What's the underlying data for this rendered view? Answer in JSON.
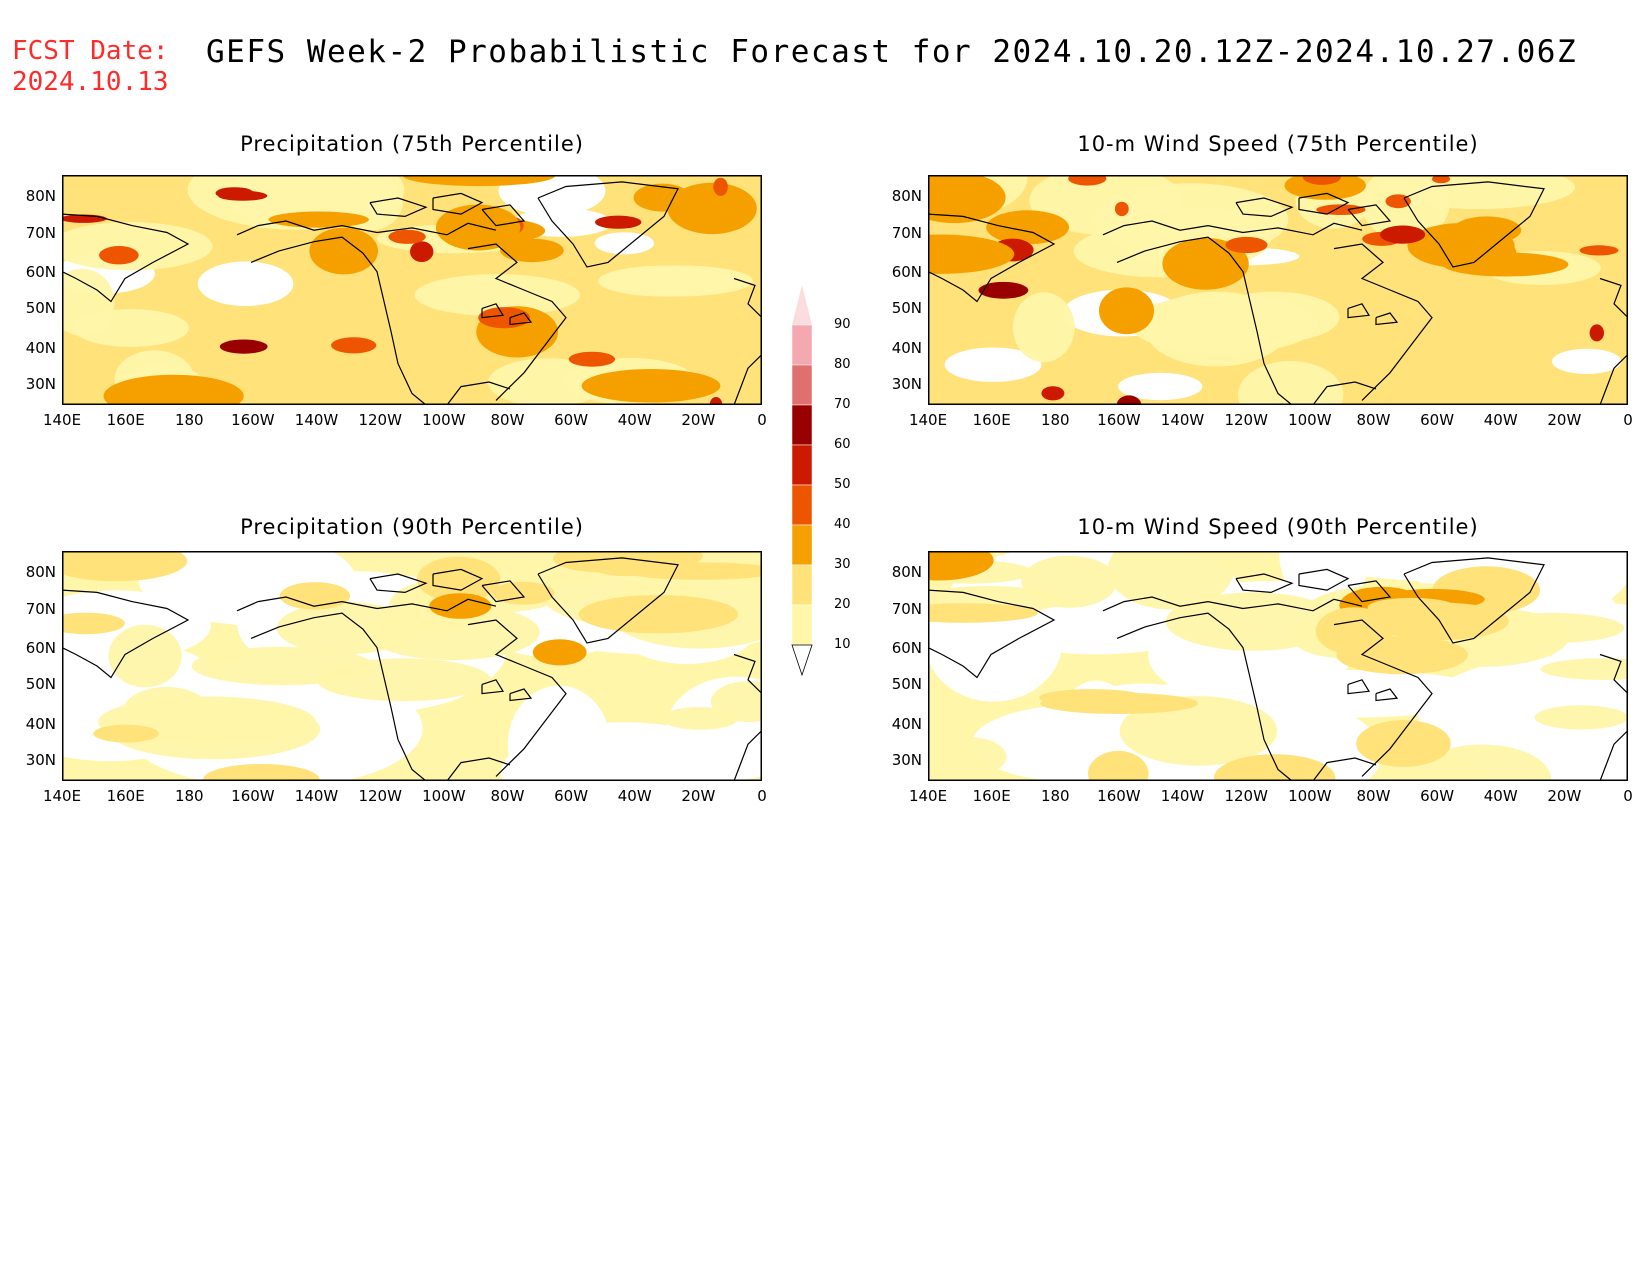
{
  "header": {
    "fcst_label": "FCST Date:",
    "fcst_date": "2024.10.13",
    "title": "GEFS Week-2 Probabilistic Forecast for 2024.10.20.12Z-2024.10.27.06Z"
  },
  "axes": {
    "lat_ticks": [
      "80N",
      "70N",
      "60N",
      "50N",
      "40N",
      "30N"
    ],
    "lon_ticks": [
      "140E",
      "160E",
      "180",
      "160W",
      "140W",
      "120W",
      "100W",
      "80W",
      "60W",
      "40W",
      "20W",
      "0"
    ]
  },
  "panels": [
    {
      "title": "Precipitation (75th Percentile)",
      "intensity": 0.85
    },
    {
      "title": "10-m Wind Speed (75th Percentile)",
      "intensity": 1.0
    },
    {
      "title": "Precipitation (90th Percentile)",
      "intensity": 0.3
    },
    {
      "title": "10-m Wind Speed (90th Percentile)",
      "intensity": 0.3
    }
  ],
  "colorbar": {
    "levels": [
      "10",
      "20",
      "30",
      "40",
      "50",
      "60",
      "70",
      "80",
      "90"
    ],
    "colors": [
      "#ffffff",
      "#fff6aa",
      "#ffe27a",
      "#f6a000",
      "#ee5500",
      "#cc1a00",
      "#990000",
      "#e07070",
      "#f4a8b0",
      "#fbdde0"
    ]
  }
}
